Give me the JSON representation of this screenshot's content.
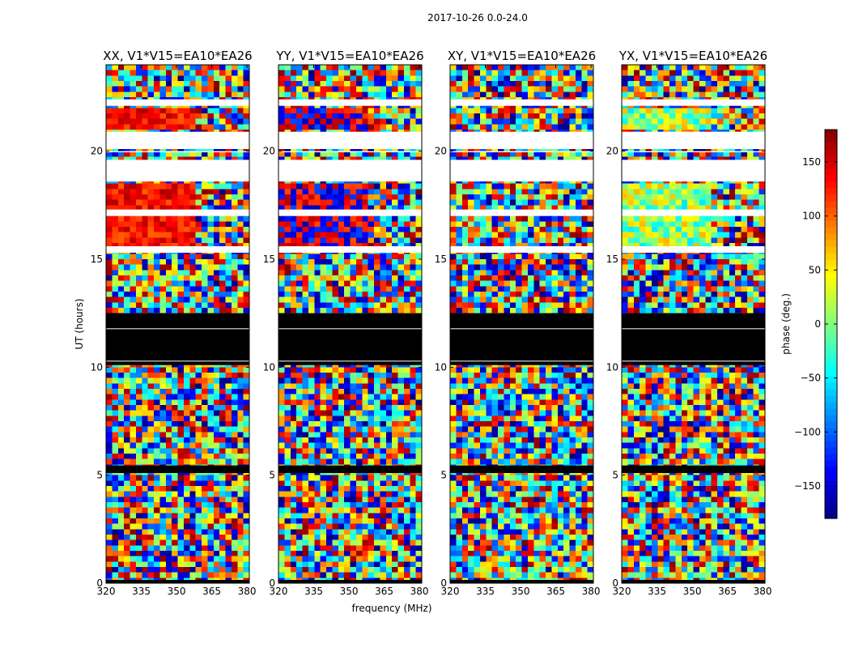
{
  "chart_data": {
    "type": "heatmap",
    "suptitle": "2017-10-26 0.0-24.0",
    "xlabel": "frequency (MHz)",
    "ylabel": "UT (hours)",
    "xlim": [
      320,
      381
    ],
    "ylim": [
      0,
      24
    ],
    "xticks": [
      320,
      335,
      350,
      365,
      380
    ],
    "yticks": [
      0,
      5,
      10,
      15,
      20
    ],
    "panels": [
      {
        "title": "XX, V1*V15=EA10*EA26",
        "pol": "XX",
        "style": "warm"
      },
      {
        "title": "YY, V1*V15=EA10*EA26",
        "pol": "YY",
        "style": "mixed"
      },
      {
        "title": "XY, V1*V15=EA10*EA26",
        "pol": "XY",
        "style": "noise"
      },
      {
        "title": "YX, V1*V15=EA10*EA26",
        "pol": "YX",
        "style": "cool"
      }
    ],
    "colorbar": {
      "label": "phase (deg.)",
      "range": [
        -180,
        180
      ],
      "ticks": [
        150,
        100,
        50,
        0,
        -50,
        -100,
        -150
      ],
      "colormap": "jet",
      "colors": [
        "#00007f",
        "#0000ff",
        "#007fff",
        "#00ffff",
        "#7fff7f",
        "#ffff00",
        "#ff7f00",
        "#ff0000",
        "#7f0000"
      ]
    },
    "flagged_intervals_ut": [
      [
        10.1,
        12.5
      ],
      [
        5.1,
        5.45
      ],
      [
        0.0,
        0.15
      ]
    ],
    "blank_intervals_ut": [
      [
        18.6,
        19.6
      ],
      [
        19.95,
        20.0
      ],
      [
        17.0,
        17.3
      ],
      [
        15.3,
        15.6
      ],
      [
        20.1,
        20.9
      ],
      [
        22.1,
        22.4
      ]
    ]
  }
}
